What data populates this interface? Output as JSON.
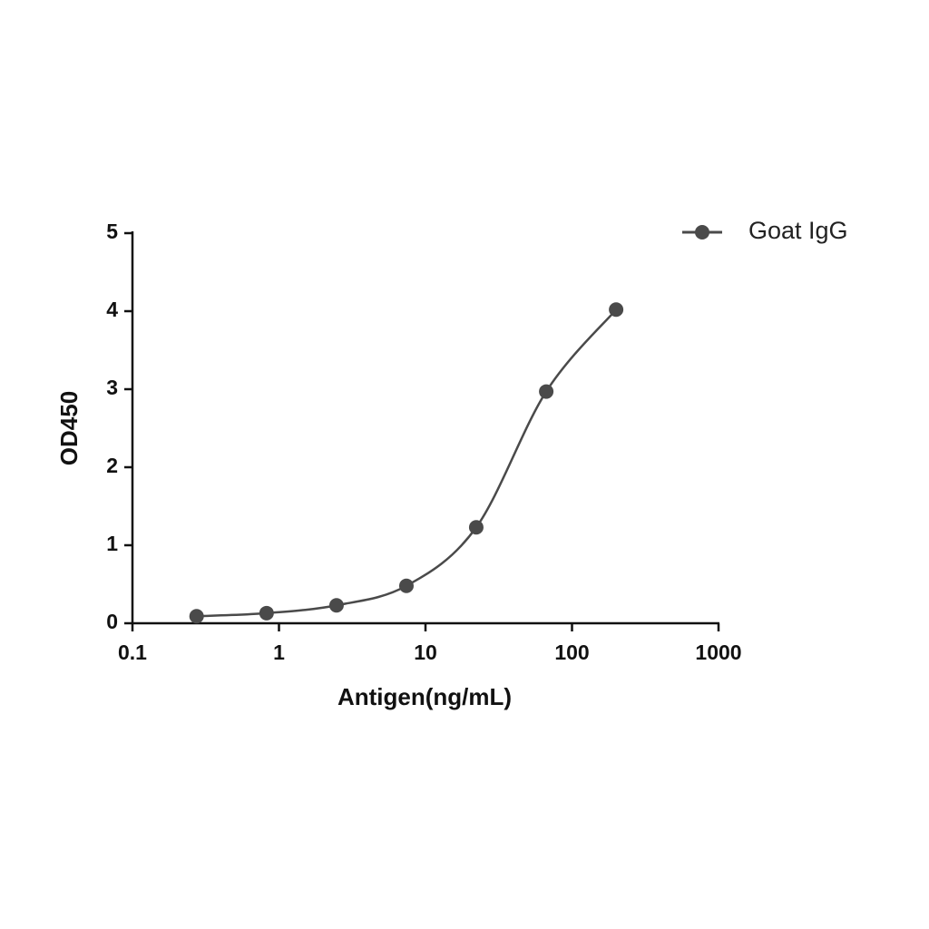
{
  "chart_data": {
    "type": "scatter",
    "xlabel": "Antigen(ng/mL)",
    "ylabel": "OD450",
    "x": [
      0.274,
      0.823,
      2.47,
      7.41,
      22.2,
      66.7,
      200
    ],
    "series": [
      {
        "name": "Goat IgG",
        "color": "#4a4a4a",
        "values": [
          0.09,
          0.13,
          0.23,
          0.48,
          1.23,
          2.97,
          4.02
        ]
      }
    ],
    "xscale": "log",
    "xlim": [
      0.1,
      1000
    ],
    "xticks": [
      0.1,
      1,
      10,
      100,
      1000
    ],
    "ylim": [
      0,
      5
    ],
    "yticks": [
      0,
      1,
      2,
      3,
      4,
      5
    ],
    "legend": "top-right"
  }
}
